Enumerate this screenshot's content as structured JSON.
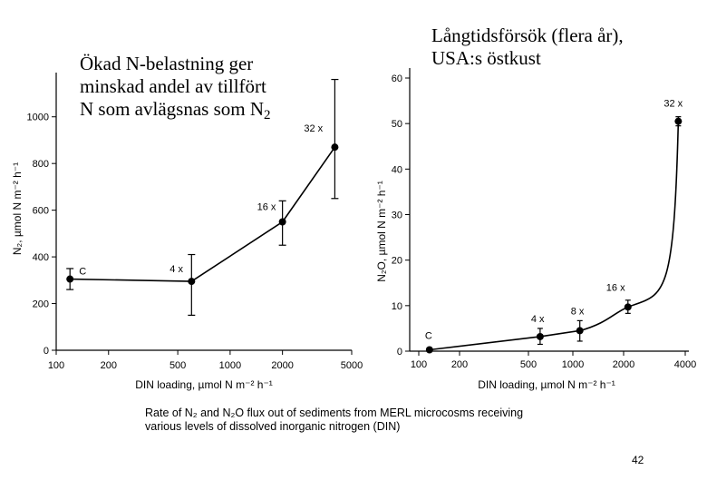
{
  "slide": {
    "left_note_main": "Ökad N-belastning ger minskad andel av tillfört N som avlägsnas som N",
    "left_note_sub": "2",
    "right_note_line1": "Långtidsförsök (flera år),",
    "right_note_line2": "USA:s östkust",
    "slide_number": "42"
  },
  "caption": {
    "line1": "Rate of N₂ and N₂O flux out of sediments from MERL microcosms receiving",
    "line2": "various levels of dissolved inorganic nitrogen (DIN)"
  },
  "chart_data": [
    {
      "type": "line",
      "title": "",
      "xlabel": "DIN loading, µmol N m⁻² h⁻¹",
      "ylabel": "N₂, µmol N m⁻² h⁻¹",
      "xscale": "log",
      "xlim": [
        100,
        5000
      ],
      "ylim": [
        0,
        1100
      ],
      "xticks": [
        100,
        200,
        500,
        1000,
        2000,
        5000
      ],
      "xtick_labels": [
        "100",
        "200",
        "500",
        "1000",
        "2000",
        "5000"
      ],
      "yticks": [
        0,
        200,
        400,
        600,
        800,
        1000
      ],
      "ytick_labels": [
        "0",
        "200",
        "400",
        "600",
        "800",
        "1000"
      ],
      "grid": false,
      "series": [
        {
          "x": [
            120,
            600,
            2000,
            4000
          ],
          "y": [
            305,
            295,
            550,
            870
          ],
          "yerr_low": [
            260,
            150,
            450,
            650
          ],
          "yerr_high": [
            350,
            410,
            640,
            1160
          ],
          "point_labels": [
            "C",
            "4 x",
            "16 x",
            "32 x"
          ]
        }
      ]
    },
    {
      "type": "line",
      "title": "",
      "xlabel": "DIN loading, µmol N m⁻² h⁻¹",
      "ylabel": "N₂O, µmol N m⁻² h⁻¹",
      "xscale": "linear",
      "xlim": [
        0,
        4000
      ],
      "ylim": [
        0,
        60
      ],
      "xticks": [
        100,
        200,
        500,
        1000,
        2000,
        4000
      ],
      "xtick_labels": [
        "100",
        "200",
        "500",
        "1000",
        "2000",
        "4000"
      ],
      "yticks": [
        0,
        10,
        20,
        30,
        40,
        50,
        60
      ],
      "ytick_labels": [
        "0",
        "10",
        "20",
        "30",
        "40",
        "50",
        "60"
      ],
      "grid": false,
      "series": [
        {
          "x": [
            120,
            600,
            1100,
            2100,
            3700
          ],
          "y": [
            0.3,
            3.2,
            4.5,
            9.7,
            50.5
          ],
          "yerr_low": [
            0.1,
            1.5,
            2.2,
            8.3,
            49.5
          ],
          "yerr_high": [
            0.5,
            5.0,
            6.7,
            11.2,
            51.5
          ],
          "point_labels": [
            "C",
            "4 x",
            "8 x",
            "16 x",
            "32 x"
          ]
        }
      ]
    }
  ]
}
